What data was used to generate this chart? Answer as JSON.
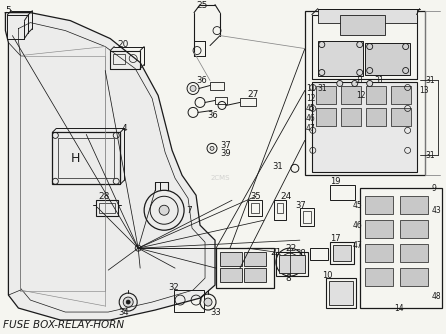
{
  "title": "FUSE BOX-RELAY-HORN",
  "bg_color": "#f5f5f0",
  "fig_width": 4.46,
  "fig_height": 3.34,
  "dpi": 100,
  "title_fontsize": 7.5,
  "label_fontsize": 6.5,
  "lc": "#1a1a1a",
  "gray": "#888888",
  "lgray": "#cccccc",
  "fc_light": "#d8d8d8"
}
